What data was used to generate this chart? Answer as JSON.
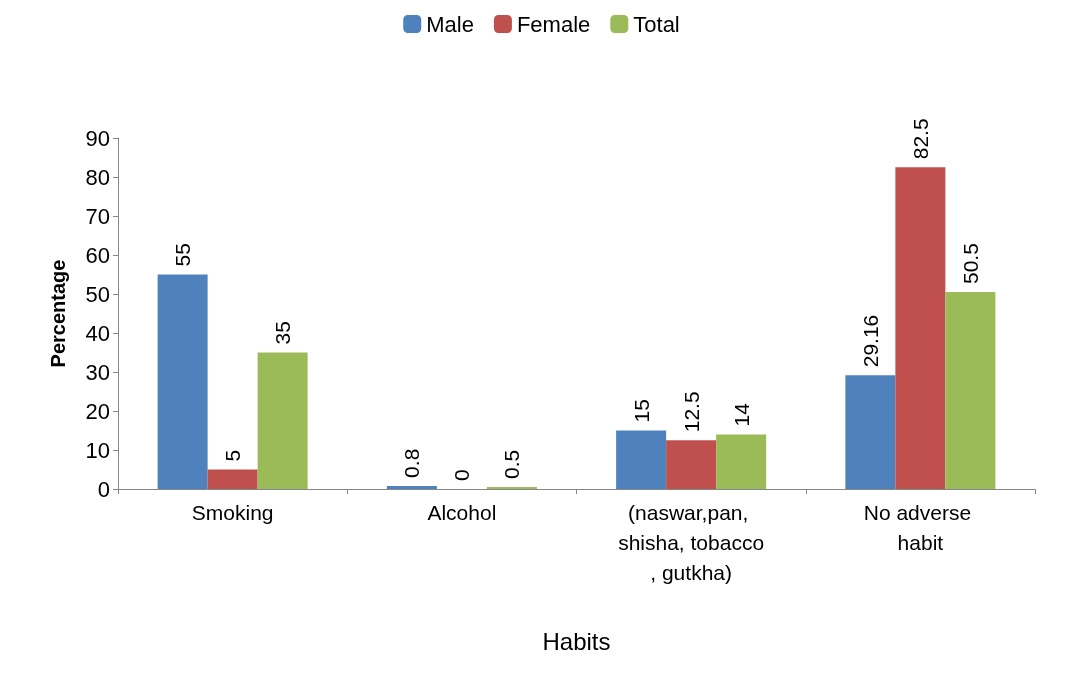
{
  "chart_data": {
    "type": "bar",
    "xlabel": "Habits",
    "ylabel": "Percentage",
    "categories": [
      "Smoking",
      "Alcohol",
      "(naswar,pan, shisha, tobacco, gutkha)",
      "No adverse habit"
    ],
    "series": [
      {
        "name": "Male",
        "color": "#4f81bd",
        "values": [
          55,
          0.8,
          15,
          29.16
        ]
      },
      {
        "name": "Female",
        "color": "#c0504d",
        "values": [
          5,
          0,
          12.5,
          82.5
        ]
      },
      {
        "name": "Total",
        "color": "#9bbb59",
        "values": [
          35,
          0.5,
          14,
          50.5
        ]
      }
    ],
    "ylim": [
      0,
      90
    ],
    "yticks": [
      0,
      10,
      20,
      30,
      40,
      50,
      60,
      70,
      80,
      90
    ],
    "grid": false,
    "legend": "top",
    "data_labels": true
  }
}
